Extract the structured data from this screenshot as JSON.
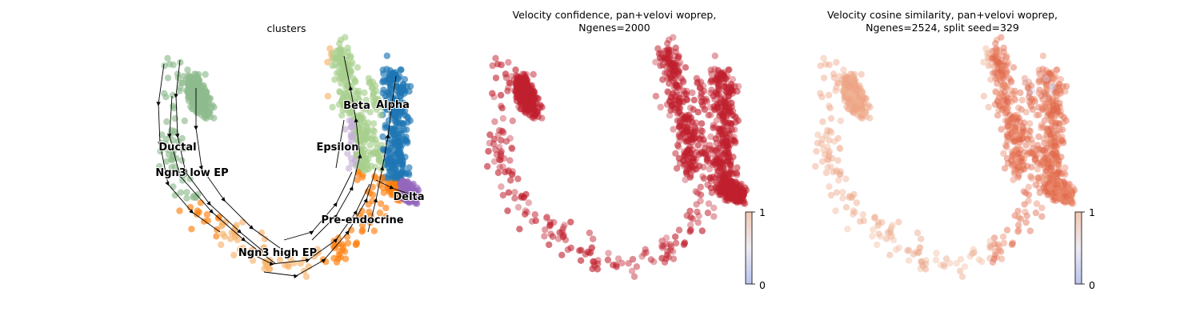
{
  "chart_data": [
    {
      "type": "scatter",
      "title": "clusters",
      "legend": "on data",
      "stream_arrows": true,
      "clusters": [
        {
          "name": "Ductal",
          "color": "#8fbc8f"
        },
        {
          "name": "Ngn3 low EP",
          "color": "#8fbc8f"
        },
        {
          "name": "Ngn3 high EP",
          "color": "#f7b36b"
        },
        {
          "name": "Pre-endocrine",
          "color": "#ff7f0e"
        },
        {
          "name": "Beta",
          "color": "#a8d08d"
        },
        {
          "name": "Alpha",
          "color": "#1f77b4"
        },
        {
          "name": "Delta",
          "color": "#9467bd"
        },
        {
          "name": "Epsilon",
          "color": "#c5b0d5"
        }
      ]
    },
    {
      "type": "scatter",
      "title_line1": "Velocity confidence, pan+velovi woprep,",
      "title_line2": "Ngenes=2000",
      "colormap": "coolwarm",
      "colorbar": {
        "min": "0",
        "max": "1",
        "range": [
          0,
          1
        ]
      },
      "point_value": 0.97,
      "point_color": "#c0202e"
    },
    {
      "type": "scatter",
      "title_line1": "Velocity cosine similarity, pan+velovi woprep,",
      "title_line2": "Ngenes=2524, split seed=329",
      "colormap": "coolwarm",
      "colorbar": {
        "min": "0",
        "max": "1",
        "range": [
          0,
          1
        ]
      },
      "point_value_range": [
        0.55,
        0.85
      ],
      "point_color": "#e8896a"
    }
  ]
}
